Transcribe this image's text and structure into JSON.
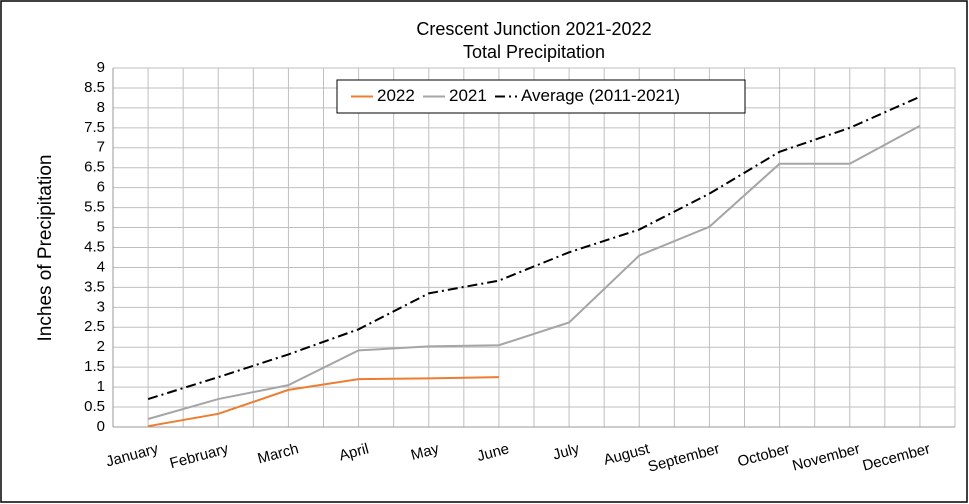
{
  "chart_data": {
    "type": "line",
    "title": "Crescent Junction 2021-2022",
    "subtitle": "Total Precipitation",
    "y_label": "Inches of Precipitation",
    "categories": [
      "January",
      "February",
      "March",
      "April",
      "May",
      "June",
      "July",
      "August",
      "September",
      "October",
      "November",
      "December"
    ],
    "series": [
      {
        "name": "2022",
        "color": "#ed7d31",
        "dash": "solid",
        "values": [
          0.02,
          0.33,
          0.93,
          1.2,
          1.22,
          1.25,
          null,
          null,
          null,
          null,
          null,
          null
        ]
      },
      {
        "name": "2021",
        "color": "#a5a5a5",
        "dash": "solid",
        "values": [
          0.2,
          0.7,
          1.05,
          1.92,
          2.02,
          2.05,
          2.62,
          4.3,
          5.02,
          6.6,
          6.6,
          7.55
        ]
      },
      {
        "name": "Average (2011-2021)",
        "color": "#000000",
        "dash": "dashdot",
        "values": [
          0.7,
          1.25,
          1.82,
          2.45,
          3.35,
          3.67,
          4.38,
          4.95,
          5.85,
          6.9,
          7.5,
          8.28
        ]
      }
    ],
    "ylim": [
      0,
      9
    ],
    "yticks": [
      0,
      0.5,
      1,
      1.5,
      2,
      2.5,
      3,
      3.5,
      4,
      4.5,
      5,
      5.5,
      6,
      6.5,
      7,
      7.5,
      8,
      8.5,
      9
    ],
    "grid": true,
    "legend": "top"
  }
}
